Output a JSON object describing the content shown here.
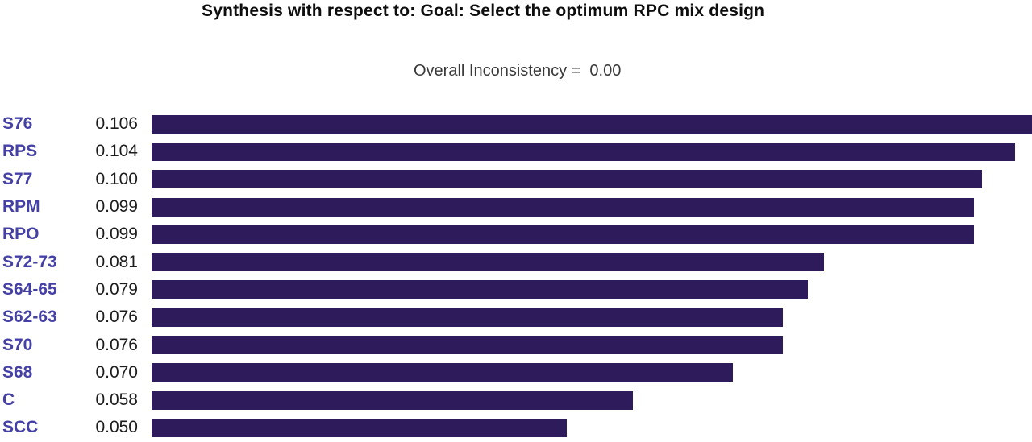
{
  "header": {
    "title": "Synthesis with respect to: Goal: Select the optimum RPC mix design",
    "subtitle": "Overall Inconsistency =  0.00"
  },
  "chart_data": {
    "type": "bar",
    "orientation": "horizontal",
    "title": "Synthesis with respect to: Goal: Select the optimum RPC mix design",
    "subtitle": "Overall Inconsistency = 0.00",
    "categories": [
      "S76",
      "RPS",
      "S77",
      "RPM",
      "RPO",
      "S72-73",
      "S64-65",
      "S62-63",
      "S70",
      "S68",
      "C",
      "SCC"
    ],
    "values": [
      0.106,
      0.104,
      0.1,
      0.099,
      0.099,
      0.081,
      0.079,
      0.076,
      0.076,
      0.07,
      0.058,
      0.05
    ],
    "value_labels": [
      "0.106",
      "0.104",
      "0.100",
      "0.099",
      "0.099",
      "0.081",
      "0.079",
      "0.076",
      "0.076",
      "0.070",
      "0.058",
      "0.050"
    ],
    "xlabel": "",
    "ylabel": "",
    "xlim": [
      0,
      0.1062
    ],
    "grid": false,
    "legend": false,
    "colors": {
      "bar": "#2E1B5B",
      "category_label": "#4540A5",
      "value_label": "#1C1C1C",
      "title": "#0E0E0E",
      "subtitle": "#3A3A3A",
      "background": "#FFFFFF"
    }
  }
}
